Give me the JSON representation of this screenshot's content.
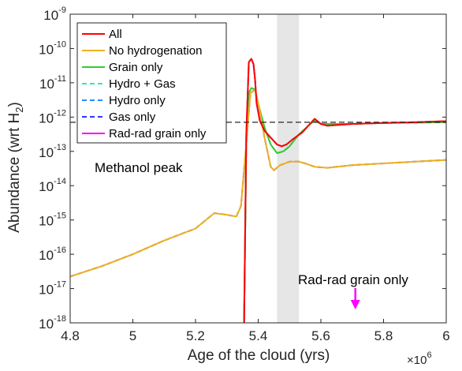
{
  "chart_data": {
    "type": "line",
    "xlabel": "Age of the cloud (yrs)",
    "ylabel_main": "Abundance (wrt H",
    "ylabel_sub": "2",
    "ylabel_tail": ")",
    "x_multiplier": {
      "base": "×10",
      "exp": "6"
    },
    "xlim": [
      4.8,
      6.0
    ],
    "ylim_log10": [
      -18,
      -9
    ],
    "y_scale": "log",
    "x_ticks": [
      {
        "value": 4.8,
        "label": "4.8"
      },
      {
        "value": 5.0,
        "label": "5"
      },
      {
        "value": 5.2,
        "label": "5.2"
      },
      {
        "value": 5.4,
        "label": "5.4"
      },
      {
        "value": 5.6,
        "label": "5.6"
      },
      {
        "value": 5.8,
        "label": "5.8"
      },
      {
        "value": 6.0,
        "label": "6"
      }
    ],
    "y_ticks": [
      {
        "exp_value": -18,
        "base": "10",
        "exp": "-18"
      },
      {
        "exp_value": -17,
        "base": "10",
        "exp": "-17"
      },
      {
        "exp_value": -16,
        "base": "10",
        "exp": "-16"
      },
      {
        "exp_value": -15,
        "base": "10",
        "exp": "-15"
      },
      {
        "exp_value": -14,
        "base": "10",
        "exp": "-14"
      },
      {
        "exp_value": -13,
        "base": "10",
        "exp": "-13"
      },
      {
        "exp_value": -12,
        "base": "10",
        "exp": "-12"
      },
      {
        "exp_value": -11,
        "base": "10",
        "exp": "-11"
      },
      {
        "exp_value": -10,
        "base": "10",
        "exp": "-10"
      },
      {
        "exp_value": -9,
        "base": "10",
        "exp": "-9"
      }
    ],
    "shaded_region_x": [
      5.46,
      5.53
    ],
    "shade_color": "#e6e6e6",
    "reference_line_log10": -12.15,
    "annotations": {
      "methanol_peak": "Methanol peak",
      "radrad_label": "Rad-rad grain only",
      "radrad_arrow_x": 5.71,
      "radrad_color": "#ff00ff"
    },
    "legend_position": "top-left",
    "series": [
      {
        "name": "All",
        "color": "#ff0000",
        "dash": "solid",
        "points": [
          [
            5.355,
            -18
          ],
          [
            5.362,
            -12.5
          ],
          [
            5.37,
            -10.4
          ],
          [
            5.378,
            -10.3
          ],
          [
            5.385,
            -10.45
          ],
          [
            5.39,
            -10.9
          ],
          [
            5.395,
            -11.6
          ],
          [
            5.405,
            -12.1
          ],
          [
            5.42,
            -12.4
          ],
          [
            5.44,
            -12.6
          ],
          [
            5.46,
            -12.8
          ],
          [
            5.475,
            -12.85
          ],
          [
            5.49,
            -12.8
          ],
          [
            5.51,
            -12.65
          ],
          [
            5.54,
            -12.45
          ],
          [
            5.565,
            -12.2
          ],
          [
            5.58,
            -12.05
          ],
          [
            5.6,
            -12.2
          ],
          [
            5.62,
            -12.25
          ],
          [
            5.7,
            -12.2
          ],
          [
            5.8,
            -12.17
          ],
          [
            5.9,
            -12.15
          ],
          [
            6.0,
            -12.12
          ]
        ]
      },
      {
        "name": "No hydrogenation",
        "color": "#edb120",
        "dash": "solid",
        "points": [
          [
            4.8,
            -16.65
          ],
          [
            4.9,
            -16.35
          ],
          [
            5.0,
            -16.0
          ],
          [
            5.1,
            -15.6
          ],
          [
            5.2,
            -15.25
          ],
          [
            5.26,
            -14.8
          ],
          [
            5.3,
            -14.85
          ],
          [
            5.33,
            -14.9
          ],
          [
            5.345,
            -14.6
          ],
          [
            5.36,
            -13.0
          ],
          [
            5.375,
            -11.3
          ],
          [
            5.39,
            -11.2
          ],
          [
            5.405,
            -11.8
          ],
          [
            5.42,
            -12.6
          ],
          [
            5.44,
            -13.45
          ],
          [
            5.45,
            -13.55
          ],
          [
            5.47,
            -13.4
          ],
          [
            5.5,
            -13.3
          ],
          [
            5.53,
            -13.3
          ],
          [
            5.55,
            -13.35
          ],
          [
            5.58,
            -13.45
          ],
          [
            5.62,
            -13.48
          ],
          [
            5.7,
            -13.4
          ],
          [
            5.8,
            -13.35
          ],
          [
            5.9,
            -13.3
          ],
          [
            6.0,
            -13.25
          ]
        ]
      },
      {
        "name": "Grain only",
        "color": "#33cc33",
        "dash": "solid",
        "points": [
          [
            5.355,
            -18
          ],
          [
            5.362,
            -12.8
          ],
          [
            5.37,
            -11.3
          ],
          [
            5.378,
            -11.15
          ],
          [
            5.39,
            -11.2
          ],
          [
            5.4,
            -11.6
          ],
          [
            5.42,
            -12.3
          ],
          [
            5.44,
            -12.8
          ],
          [
            5.46,
            -13.05
          ],
          [
            5.48,
            -13.0
          ],
          [
            5.5,
            -12.85
          ],
          [
            5.53,
            -12.5
          ],
          [
            5.56,
            -12.25
          ],
          [
            5.58,
            -12.1
          ],
          [
            5.6,
            -12.2
          ],
          [
            5.7,
            -12.2
          ],
          [
            5.8,
            -12.17
          ],
          [
            6.0,
            -12.15
          ]
        ]
      },
      {
        "name": "Hydro + Gas",
        "color": "#33e6b3",
        "dash": "dashed",
        "points": [
          [
            5.355,
            -18
          ],
          [
            5.362,
            -12.5
          ],
          [
            5.37,
            -10.4
          ],
          [
            5.378,
            -10.3
          ],
          [
            5.385,
            -10.45
          ],
          [
            5.39,
            -10.9
          ],
          [
            5.395,
            -11.6
          ],
          [
            5.405,
            -12.1
          ],
          [
            5.42,
            -12.4
          ],
          [
            5.44,
            -12.6
          ],
          [
            5.46,
            -12.8
          ],
          [
            5.475,
            -12.85
          ],
          [
            5.49,
            -12.8
          ],
          [
            5.51,
            -12.65
          ],
          [
            5.54,
            -12.45
          ],
          [
            5.565,
            -12.2
          ],
          [
            5.58,
            -12.05
          ],
          [
            5.6,
            -12.2
          ],
          [
            5.62,
            -12.25
          ],
          [
            5.7,
            -12.2
          ],
          [
            5.8,
            -12.17
          ],
          [
            5.9,
            -12.15
          ],
          [
            6.0,
            -12.12
          ]
        ]
      },
      {
        "name": "Hydro only",
        "color": "#1f8fff",
        "dash": "dashed",
        "points": [
          [
            5.355,
            -18
          ],
          [
            5.362,
            -12.8
          ],
          [
            5.37,
            -11.3
          ],
          [
            5.378,
            -11.15
          ],
          [
            5.39,
            -11.2
          ],
          [
            5.4,
            -11.6
          ],
          [
            5.42,
            -12.3
          ],
          [
            5.44,
            -12.8
          ],
          [
            5.46,
            -13.05
          ],
          [
            5.48,
            -13.0
          ],
          [
            5.5,
            -12.85
          ],
          [
            5.53,
            -12.5
          ],
          [
            5.56,
            -12.25
          ],
          [
            5.58,
            -12.1
          ],
          [
            5.6,
            -12.2
          ],
          [
            5.7,
            -12.2
          ],
          [
            5.8,
            -12.17
          ],
          [
            6.0,
            -12.15
          ]
        ]
      },
      {
        "name": "Gas only",
        "color": "#3333ff",
        "dash": "dashed",
        "points": [
          [
            4.8,
            -16.65
          ],
          [
            4.9,
            -16.35
          ],
          [
            5.0,
            -16.0
          ],
          [
            5.1,
            -15.6
          ],
          [
            5.2,
            -15.25
          ],
          [
            5.26,
            -14.8
          ],
          [
            5.3,
            -14.85
          ],
          [
            5.33,
            -14.9
          ],
          [
            5.345,
            -14.6
          ],
          [
            5.36,
            -13.0
          ],
          [
            5.375,
            -11.3
          ],
          [
            5.39,
            -11.2
          ],
          [
            5.405,
            -11.8
          ],
          [
            5.42,
            -12.6
          ],
          [
            5.44,
            -13.45
          ],
          [
            5.45,
            -13.55
          ],
          [
            5.47,
            -13.4
          ],
          [
            5.5,
            -13.3
          ],
          [
            5.53,
            -13.3
          ],
          [
            5.55,
            -13.35
          ],
          [
            5.58,
            -13.45
          ],
          [
            5.62,
            -13.48
          ],
          [
            5.7,
            -13.4
          ],
          [
            5.8,
            -13.35
          ],
          [
            5.9,
            -13.3
          ],
          [
            6.0,
            -13.25
          ]
        ]
      },
      {
        "name": "Rad-rad grain only",
        "color": "#ff00ff",
        "dash": "solid",
        "points": [
          [
            5.355,
            -18
          ],
          [
            5.362,
            -12.5
          ],
          [
            5.37,
            -10.4
          ],
          [
            5.378,
            -10.3
          ],
          [
            5.385,
            -10.45
          ],
          [
            5.39,
            -10.9
          ],
          [
            5.395,
            -11.6
          ],
          [
            5.405,
            -12.1
          ],
          [
            5.42,
            -12.4
          ],
          [
            5.44,
            -12.6
          ],
          [
            5.46,
            -12.8
          ],
          [
            5.475,
            -12.85
          ],
          [
            5.49,
            -12.8
          ],
          [
            5.51,
            -12.65
          ],
          [
            5.54,
            -12.45
          ],
          [
            5.565,
            -12.2
          ],
          [
            5.58,
            -12.05
          ],
          [
            5.6,
            -12.2
          ],
          [
            5.62,
            -12.25
          ],
          [
            5.7,
            -12.2
          ],
          [
            5.8,
            -12.17
          ],
          [
            5.9,
            -12.15
          ],
          [
            6.0,
            -12.12
          ]
        ]
      }
    ]
  }
}
